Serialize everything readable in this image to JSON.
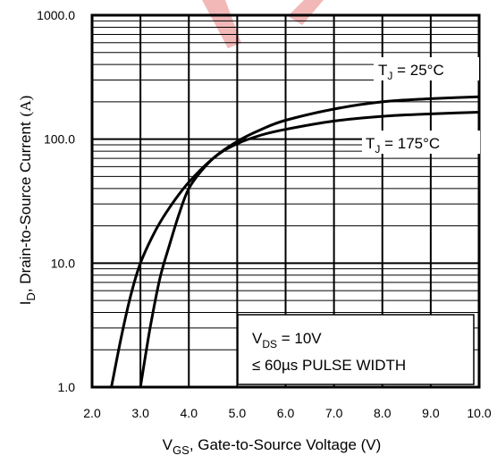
{
  "chart_data": {
    "type": "line",
    "xlabel_main": "V",
    "xlabel_sub": "GS",
    "xlabel_rest": ", Gate-to-Source Voltage (V)",
    "ylabel_main": "I",
    "ylabel_sub": "D",
    "ylabel_rest": ", Drain-to-Source Current",
    "ylabel_unit": "(A)",
    "xlim": [
      2.0,
      10.0
    ],
    "ylim": [
      1.0,
      1000.0
    ],
    "yscale": "log",
    "grid": true,
    "x_ticks": [
      2.0,
      3.0,
      4.0,
      5.0,
      6.0,
      7.0,
      8.0,
      9.0,
      10.0
    ],
    "x_tick_labels": [
      "2.0",
      "3.0",
      "4.0",
      "5.0",
      "6.0",
      "7.0",
      "8.0",
      "9.0",
      "10.0"
    ],
    "y_ticks": [
      1.0,
      10.0,
      100.0,
      1000.0
    ],
    "y_tick_labels": [
      "1.0",
      "10.0",
      "100.0",
      "1000.0"
    ],
    "series": [
      {
        "label_main": "T",
        "label_sub": "J",
        "label_rest": " = 25°C",
        "x": [
          2.4,
          2.6,
          2.8,
          3.0,
          3.3,
          3.6,
          4.0,
          4.5,
          5.0,
          5.5,
          6.0,
          7.0,
          8.0,
          9.0,
          10.0
        ],
        "y": [
          1.0,
          2.5,
          5.5,
          10.0,
          18.0,
          28.0,
          45.0,
          70.0,
          96.0,
          120.0,
          142.0,
          175.0,
          200.0,
          212.0,
          220.0
        ]
      },
      {
        "label_main": "T",
        "label_sub": "J",
        "label_rest": " = 175°C",
        "x": [
          3.0,
          3.2,
          3.4,
          3.6,
          3.8,
          4.0,
          4.3,
          4.6,
          5.0,
          5.5,
          6.0,
          7.0,
          8.0,
          9.0,
          10.0
        ],
        "y": [
          1.0,
          3.0,
          7.5,
          14.0,
          25.0,
          40.0,
          58.0,
          75.0,
          92.0,
          108.0,
          120.0,
          140.0,
          153.0,
          160.0,
          165.0
        ]
      }
    ],
    "conditions": {
      "vds_main": "V",
      "vds_sub": "DS",
      "vds_rest": " = 10V",
      "pulse": "≤ 60µs PULSE WIDTH"
    }
  }
}
